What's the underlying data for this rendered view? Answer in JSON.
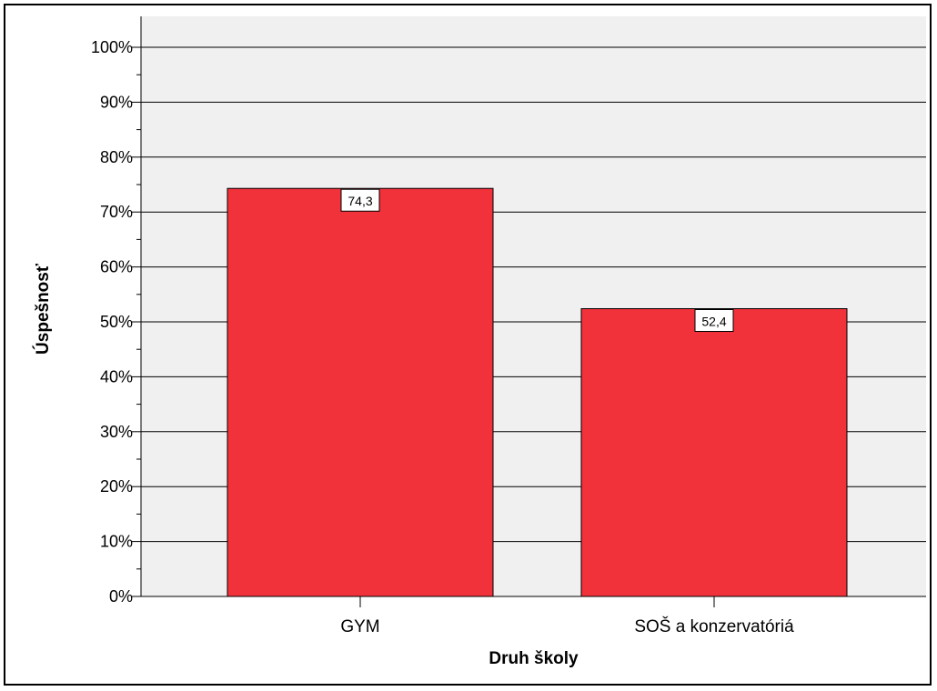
{
  "chart_data": {
    "type": "bar",
    "categories": [
      "GYM",
      "SOŠ a konzervatóriá"
    ],
    "values": [
      74.3,
      52.4
    ],
    "data_labels": [
      "74,3",
      "52,4"
    ],
    "xlabel": "Druh školy",
    "ylabel": "Úspešnosť",
    "ylim": [
      0,
      100
    ],
    "yticks": [
      0,
      10,
      20,
      30,
      40,
      50,
      60,
      70,
      80,
      90,
      100
    ],
    "ytick_labels": [
      "0%",
      "10%",
      "20%",
      "30%",
      "40%",
      "50%",
      "60%",
      "70%",
      "80%",
      "90%",
      "100%"
    ],
    "grid": true,
    "legend": "none",
    "colors": {
      "bar_fill": "#f1323a",
      "plot_background": "#f0f0f0",
      "gridline": "#000000"
    }
  }
}
